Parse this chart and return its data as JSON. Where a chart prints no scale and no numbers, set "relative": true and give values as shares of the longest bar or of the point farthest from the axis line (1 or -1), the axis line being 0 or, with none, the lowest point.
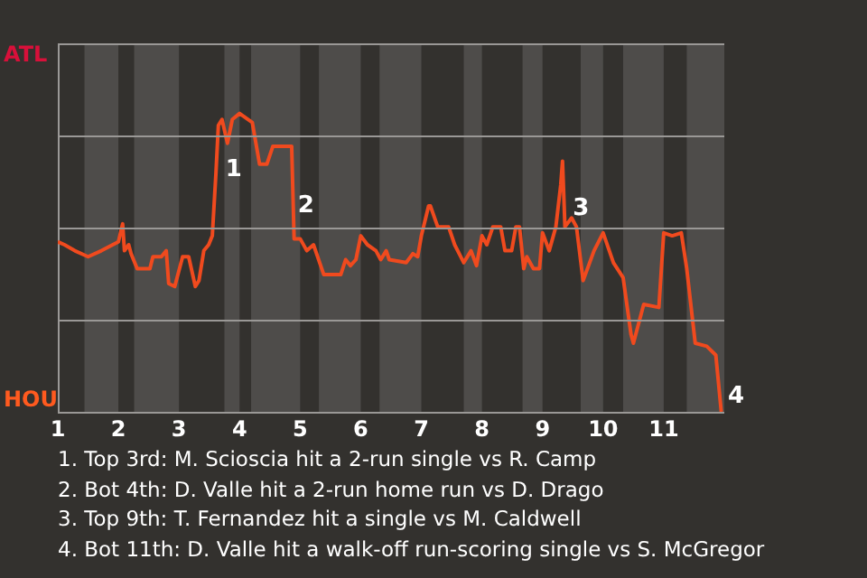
{
  "chart_data": {
    "type": "line",
    "relative": true,
    "x": [
      1,
      1.11,
      1.28,
      1.5,
      1.72,
      2,
      2.07,
      2.1,
      2.17,
      2.21,
      2.31,
      2.36,
      2.52,
      2.57,
      2.71,
      2.79,
      2.83,
      2.93,
      3.06,
      3.16,
      3.27,
      3.33,
      3.41,
      3.49,
      3.55,
      3.61,
      3.65,
      3.71,
      3.8,
      3.88,
      4,
      4.21,
      4.33,
      4.45,
      4.55,
      4.86,
      4.9,
      5,
      5.11,
      5.22,
      5.39,
      5.67,
      5.75,
      5.83,
      5.92,
      6,
      6.11,
      6.25,
      6.33,
      6.42,
      6.47,
      6.75,
      6.86,
      6.94,
      7,
      7.12,
      7.15,
      7.27,
      7.45,
      7.55,
      7.7,
      7.82,
      7.91,
      8,
      8.08,
      8.18,
      8.31,
      8.38,
      8.49,
      8.56,
      8.62,
      8.69,
      8.74,
      8.85,
      8.95,
      9,
      9.11,
      9.22,
      9.3,
      9.33,
      9.37,
      9.48,
      9.56,
      9.67,
      9.85,
      10,
      10.17,
      10.33,
      10.46,
      10.5,
      10.67,
      10.92,
      11,
      11.14,
      11.29,
      11.38,
      11.52,
      11.71,
      11.86,
      11.95
    ],
    "series": [
      {
        "color": "#f04a1e",
        "values": [
          0.57,
          0.56,
          0.54,
          0.52,
          0.54,
          0.57,
          0.63,
          0.54,
          0.56,
          0.53,
          0.48,
          0.48,
          0.48,
          0.52,
          0.52,
          0.54,
          0.43,
          0.42,
          0.52,
          0.52,
          0.42,
          0.44,
          0.54,
          0.56,
          0.59,
          0.8,
          0.96,
          0.98,
          0.9,
          0.98,
          1,
          0.97,
          0.83,
          0.83,
          0.89,
          0.89,
          0.58,
          0.58,
          0.54,
          0.56,
          0.46,
          0.46,
          0.51,
          0.49,
          0.51,
          0.59,
          0.56,
          0.54,
          0.51,
          0.54,
          0.51,
          0.5,
          0.53,
          0.52,
          0.59,
          0.69,
          0.69,
          0.62,
          0.62,
          0.56,
          0.5,
          0.54,
          0.49,
          0.59,
          0.56,
          0.62,
          0.62,
          0.54,
          0.54,
          0.62,
          0.62,
          0.48,
          0.52,
          0.48,
          0.48,
          0.6,
          0.54,
          0.62,
          0.76,
          0.84,
          0.62,
          0.65,
          0.62,
          0.44,
          0.54,
          0.6,
          0.5,
          0.45,
          0.26,
          0.23,
          0.36,
          0.35,
          0.6,
          0.59,
          0.6,
          0.48,
          0.23,
          0.22,
          0.19,
          0
        ]
      }
    ],
    "xlim": [
      1,
      12
    ],
    "xticks": [
      1,
      2,
      3,
      4,
      5,
      6,
      7,
      8,
      9,
      10,
      11
    ],
    "marker": "none",
    "line_style": "solid",
    "legend": false,
    "bands": [
      {
        "axis": "x",
        "from": 1.44,
        "to": 2,
        "color": "#4e4c4a"
      },
      {
        "axis": "x",
        "from": 2.26,
        "to": 3,
        "color": "#4e4c4a"
      },
      {
        "axis": "x",
        "from": 3.75,
        "to": 4,
        "color": "#4e4c4a"
      },
      {
        "axis": "x",
        "from": 4.19,
        "to": 5,
        "color": "#4e4c4a"
      },
      {
        "axis": "x",
        "from": 5.31,
        "to": 6,
        "color": "#4e4c4a"
      },
      {
        "axis": "x",
        "from": 6.31,
        "to": 7,
        "color": "#4e4c4a"
      },
      {
        "axis": "x",
        "from": 7.7,
        "to": 8,
        "color": "#4e4c4a"
      },
      {
        "axis": "x",
        "from": 8.67,
        "to": 9,
        "color": "#4e4c4a"
      },
      {
        "axis": "x",
        "from": 9.63,
        "to": 10,
        "color": "#4e4c4a"
      },
      {
        "axis": "x",
        "from": 10.33,
        "to": 11,
        "color": "#4e4c4a"
      },
      {
        "axis": "x",
        "from": 11.38,
        "to": 12,
        "color": "#4e4c4a"
      }
    ],
    "annotations": [
      "ATL",
      "HOU",
      {
        "text": "1",
        "x": 3.71,
        "y": 0.81
      },
      {
        "text": "2",
        "x": 4.9,
        "y": 0.69
      },
      {
        "text": "3",
        "x": 9.44,
        "y": 0.68
      },
      {
        "text": "4",
        "x": 12,
        "y": 0.05
      },
      "1. Top 3rd: M. Scioscia hit a 2-run single vs R. Camp",
      "2. Bot 4th: D. Valle hit a 2-run home run vs D. Drago",
      "3. Top 9th: T. Fernandez hit a single vs M. Caldwell",
      "4. Bot 11th: D. Valle hit a walk-off run-scoring single vs S. McGregor"
    ]
  }
}
